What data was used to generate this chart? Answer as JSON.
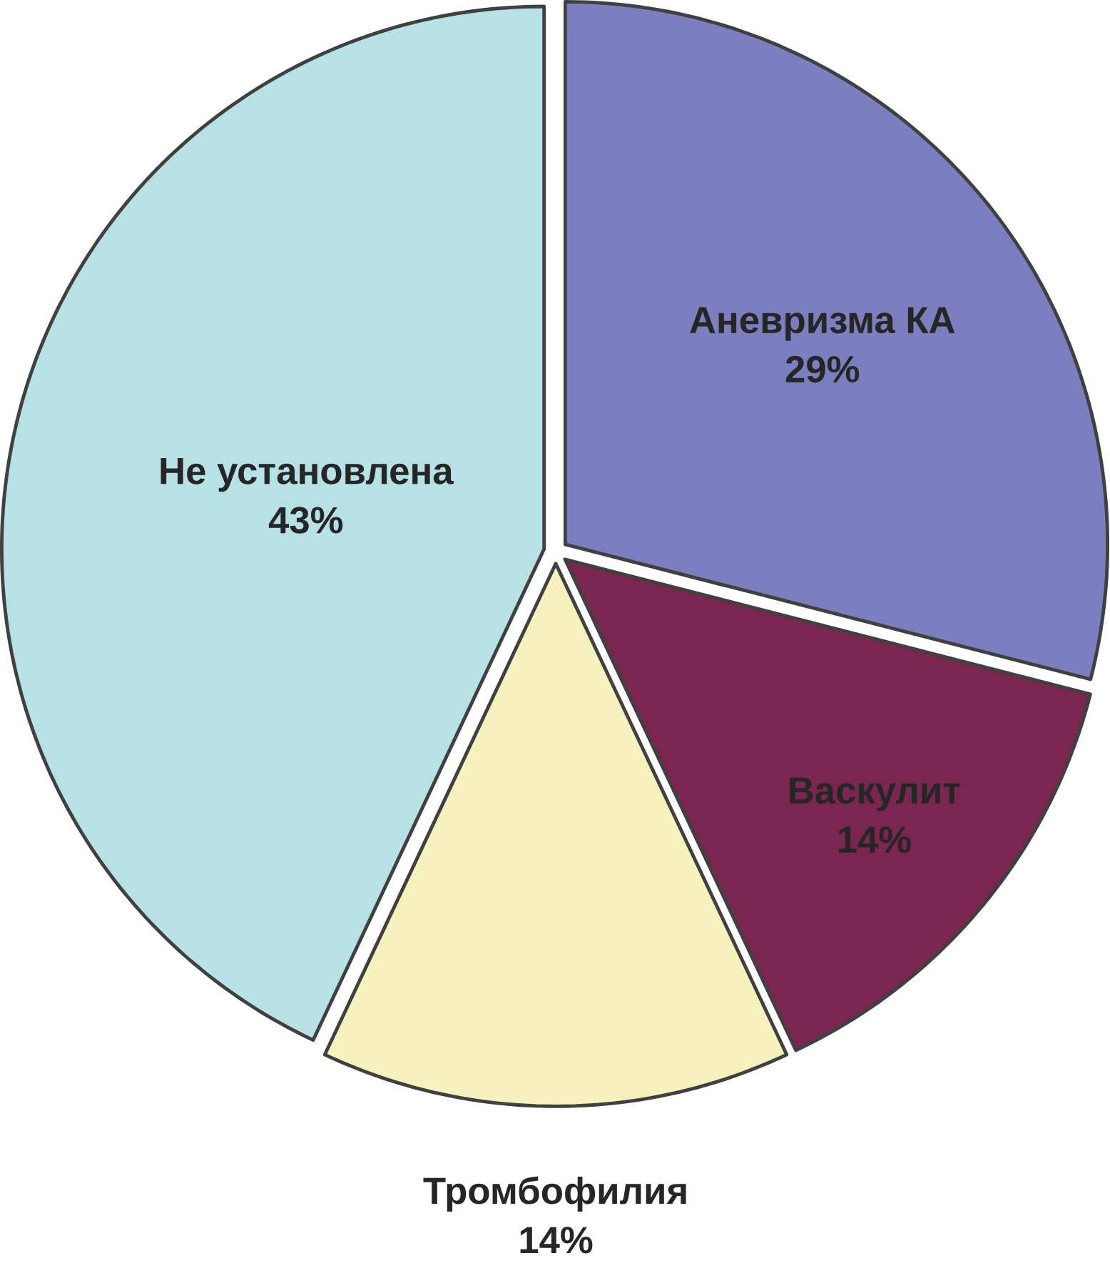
{
  "chart_data": {
    "type": "pie",
    "categories": [
      "Аневризма КА",
      "Васкулит",
      "Тромбофилия",
      "Не установлена"
    ],
    "values": [
      29,
      14,
      14,
      43
    ],
    "colors": [
      "#7b7fbf",
      "#7b2650",
      "#f7f2bd",
      "#b8e1e6"
    ],
    "value_labels": [
      "29%",
      "14%",
      "14%",
      "43%"
    ]
  }
}
